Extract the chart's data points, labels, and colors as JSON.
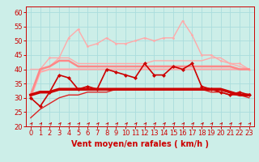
{
  "background_color": "#cceee8",
  "grid_color": "#aadddd",
  "xlabel": "Vent moyen/en rafales ( km/h )",
  "xlabel_color": "#cc0000",
  "xlabel_fontsize": 7,
  "tick_color": "#cc0000",
  "tick_fontsize": 6,
  "ylim": [
    20,
    62
  ],
  "yticks": [
    20,
    25,
    30,
    35,
    40,
    45,
    50,
    55,
    60
  ],
  "xlim": [
    -0.5,
    23.5
  ],
  "xticks": [
    0,
    1,
    2,
    3,
    4,
    5,
    6,
    7,
    8,
    9,
    10,
    11,
    12,
    13,
    14,
    15,
    16,
    17,
    18,
    19,
    20,
    21,
    22,
    23
  ],
  "series": [
    {
      "name": "light_pink_marker",
      "y": [
        30,
        40,
        44,
        44,
        51,
        54,
        48,
        49,
        51,
        49,
        49,
        50,
        51,
        50,
        51,
        51,
        57,
        52,
        45,
        45,
        43,
        42,
        42,
        40
      ],
      "color": "#ffaaaa",
      "linewidth": 1.0,
      "marker": "o",
      "markersize": 2.0,
      "zorder": 3
    },
    {
      "name": "light_pink_upper",
      "y": [
        40,
        40,
        41,
        44,
        44,
        42,
        42,
        42,
        42,
        42,
        42,
        42,
        42,
        43,
        43,
        43,
        43,
        43,
        43,
        44,
        44,
        42,
        41,
        40
      ],
      "color": "#ffaaaa",
      "linewidth": 1.0,
      "marker": null,
      "markersize": 0,
      "zorder": 3
    },
    {
      "name": "light_pink_lower",
      "y": [
        30,
        39,
        40,
        40,
        40,
        40,
        40,
        40,
        40,
        40,
        40,
        40,
        40,
        40,
        40,
        40,
        40,
        40,
        40,
        40,
        40,
        40,
        40,
        40
      ],
      "color": "#ffaaaa",
      "linewidth": 1.5,
      "marker": null,
      "markersize": 0,
      "zorder": 3
    },
    {
      "name": "pink_median",
      "y": [
        31,
        40,
        41,
        43,
        43,
        41,
        41,
        41,
        41,
        41,
        41,
        41,
        41,
        41,
        41,
        41,
        41,
        41,
        41,
        41,
        41,
        41,
        40,
        40
      ],
      "color": "#ff8888",
      "linewidth": 1.8,
      "marker": null,
      "markersize": 0,
      "zorder": 4
    },
    {
      "name": "dark_red_lower_smooth",
      "y": [
        23,
        26,
        28,
        30,
        31,
        31,
        32,
        32,
        32,
        33,
        33,
        33,
        33,
        33,
        33,
        33,
        33,
        33,
        33,
        32,
        32,
        31,
        31,
        30
      ],
      "color": "#dd2222",
      "linewidth": 1.0,
      "marker": null,
      "markersize": 0,
      "zorder": 4
    },
    {
      "name": "dark_red_upper_smooth",
      "y": [
        31,
        32,
        32,
        33,
        33,
        33,
        33,
        33,
        33,
        33,
        33,
        33,
        33,
        33,
        33,
        33,
        33,
        33,
        33,
        33,
        33,
        32,
        31,
        31
      ],
      "color": "#cc0000",
      "linewidth": 2.5,
      "marker": null,
      "markersize": 0,
      "zorder": 5
    },
    {
      "name": "dark_red_marker",
      "y": [
        30,
        27,
        32,
        38,
        37,
        33,
        34,
        33,
        40,
        39,
        38,
        37,
        42,
        38,
        38,
        41,
        40,
        42,
        34,
        33,
        32,
        31,
        32,
        31
      ],
      "color": "#cc0000",
      "linewidth": 1.2,
      "marker": "D",
      "markersize": 2.5,
      "zorder": 6
    }
  ],
  "arrow_color": "#cc0000"
}
